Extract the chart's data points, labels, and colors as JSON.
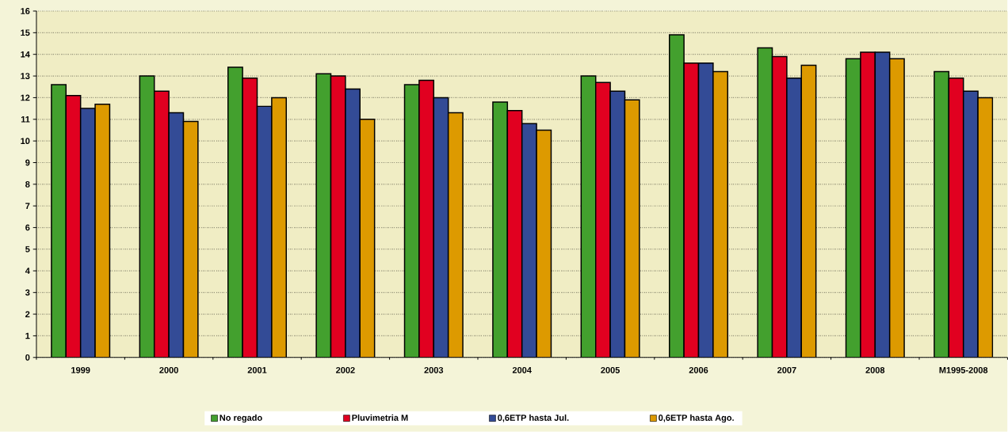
{
  "chart_data": {
    "type": "bar",
    "categories": [
      "1999",
      "2000",
      "2001",
      "2002",
      "2003",
      "2004",
      "2005",
      "2006",
      "2007",
      "2008",
      "M1995-2008"
    ],
    "series": [
      {
        "name": "No regado",
        "color": "#43a02e",
        "values": [
          12.6,
          13.0,
          13.4,
          13.1,
          12.6,
          11.8,
          13.0,
          14.9,
          14.3,
          13.8,
          13.2
        ]
      },
      {
        "name": "Pluvimetria M",
        "color": "#e10020",
        "values": [
          12.1,
          12.3,
          12.9,
          13.0,
          12.8,
          11.4,
          12.7,
          13.6,
          13.9,
          14.1,
          12.9
        ]
      },
      {
        "name": "0,6ETP hasta Jul.",
        "color": "#334b96",
        "values": [
          11.5,
          11.3,
          11.6,
          12.4,
          12.0,
          10.8,
          12.3,
          13.6,
          12.9,
          14.1,
          12.3
        ]
      },
      {
        "name": "0,6ETP hasta Ago.",
        "color": "#dd9a00",
        "values": [
          11.7,
          10.9,
          12.0,
          11.0,
          11.3,
          10.5,
          11.9,
          13.2,
          13.5,
          13.8,
          12.0
        ]
      }
    ],
    "ylim": [
      0,
      16
    ],
    "yticks": [
      0,
      1,
      2,
      3,
      4,
      5,
      6,
      7,
      8,
      9,
      10,
      11,
      12,
      13,
      14,
      15,
      16
    ],
    "grid": "y",
    "legend": "bottom"
  }
}
